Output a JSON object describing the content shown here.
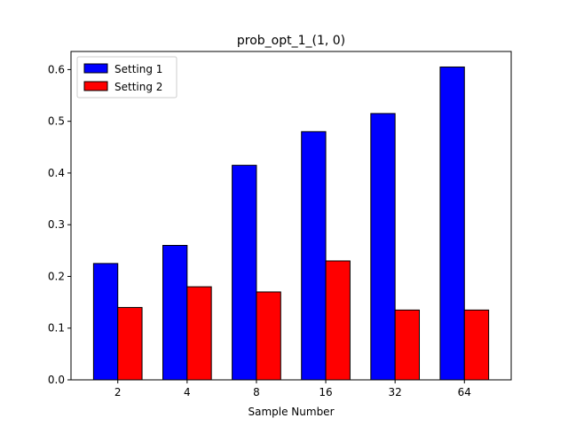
{
  "chart_data": {
    "type": "bar",
    "title": "prob_opt_1_(1, 0)",
    "xlabel": "Sample Number",
    "ylabel": "",
    "categories": [
      "2",
      "4",
      "8",
      "16",
      "32",
      "64"
    ],
    "series": [
      {
        "name": "Setting 1",
        "color": "#0000ff",
        "values": [
          0.225,
          0.26,
          0.415,
          0.48,
          0.515,
          0.605
        ]
      },
      {
        "name": "Setting 2",
        "color": "#ff0000",
        "values": [
          0.14,
          0.18,
          0.17,
          0.23,
          0.135,
          0.135
        ]
      }
    ],
    "ylim": [
      0,
      0.635
    ],
    "yticks": [
      "0.0",
      "0.1",
      "0.2",
      "0.3",
      "0.4",
      "0.5",
      "0.6"
    ],
    "grid": false,
    "legend_position": "top-left"
  }
}
